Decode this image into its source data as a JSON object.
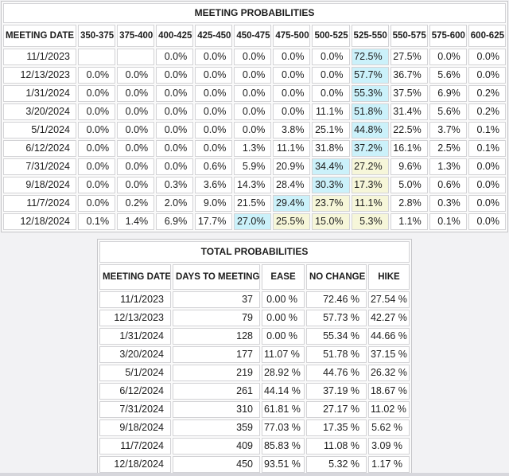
{
  "colors": {
    "page_bg": "#f2f2f4",
    "table_bg": "#fafafa",
    "outer_border": "#c5c5c8",
    "cell_border": "#d3d3d6",
    "text": "#1c1c1c",
    "highlight_max": "#cbf1fa",
    "highlight_current": "#f6f6d9",
    "bottom_edge": "#d7d7dc",
    "cell_bg": "#ffffff"
  },
  "meeting_table": {
    "title": "MEETING PROBABILITIES",
    "columns": [
      "MEETING DATE",
      "350-375",
      "375-400",
      "400-425",
      "425-450",
      "450-475",
      "475-500",
      "500-525",
      "525-550",
      "550-575",
      "575-600",
      "600-625"
    ],
    "rows": [
      {
        "cells": [
          "11/1/2023",
          "",
          "",
          "0.0%",
          "0.0%",
          "0.0%",
          "0.0%",
          "0.0%",
          {
            "t": "72.5%",
            "h": "max"
          },
          "27.5%",
          "0.0%",
          "0.0%"
        ]
      },
      {
        "cells": [
          "12/13/2023",
          "0.0%",
          "0.0%",
          "0.0%",
          "0.0%",
          "0.0%",
          "0.0%",
          "0.0%",
          {
            "t": "57.7%",
            "h": "max"
          },
          "36.7%",
          "5.6%",
          "0.0%"
        ]
      },
      {
        "cells": [
          "1/31/2024",
          "0.0%",
          "0.0%",
          "0.0%",
          "0.0%",
          "0.0%",
          "0.0%",
          "0.0%",
          {
            "t": "55.3%",
            "h": "max"
          },
          "37.5%",
          "6.9%",
          "0.2%"
        ]
      },
      {
        "cells": [
          "3/20/2024",
          "0.0%",
          "0.0%",
          "0.0%",
          "0.0%",
          "0.0%",
          "0.0%",
          "11.1%",
          {
            "t": "51.8%",
            "h": "max"
          },
          "31.4%",
          "5.6%",
          "0.2%"
        ]
      },
      {
        "cells": [
          "5/1/2024",
          "0.0%",
          "0.0%",
          "0.0%",
          "0.0%",
          "0.0%",
          "3.8%",
          "25.1%",
          {
            "t": "44.8%",
            "h": "max"
          },
          "22.5%",
          "3.7%",
          "0.1%"
        ]
      },
      {
        "cells": [
          "6/12/2024",
          "0.0%",
          "0.0%",
          "0.0%",
          "0.0%",
          "1.3%",
          "11.1%",
          "31.8%",
          {
            "t": "37.2%",
            "h": "max"
          },
          "16.1%",
          "2.5%",
          "0.1%"
        ]
      },
      {
        "cells": [
          "7/31/2024",
          "0.0%",
          "0.0%",
          "0.0%",
          "0.6%",
          "5.9%",
          "20.9%",
          {
            "t": "34.4%",
            "h": "max"
          },
          {
            "t": "27.2%",
            "h": "cur"
          },
          "9.6%",
          "1.3%",
          "0.0%"
        ]
      },
      {
        "cells": [
          "9/18/2024",
          "0.0%",
          "0.0%",
          "0.3%",
          "3.6%",
          "14.3%",
          "28.4%",
          {
            "t": "30.3%",
            "h": "max"
          },
          {
            "t": "17.3%",
            "h": "cur"
          },
          "5.0%",
          "0.6%",
          "0.0%"
        ]
      },
      {
        "cells": [
          "11/7/2024",
          "0.0%",
          "0.2%",
          "2.0%",
          "9.0%",
          "21.5%",
          {
            "t": "29.4%",
            "h": "max"
          },
          {
            "t": "23.7%",
            "h": "cur"
          },
          {
            "t": "11.1%",
            "h": "cur"
          },
          "2.8%",
          "0.3%",
          "0.0%"
        ]
      },
      {
        "cells": [
          "12/18/2024",
          "0.1%",
          "1.4%",
          "6.9%",
          "17.7%",
          {
            "t": "27.0%",
            "h": "max"
          },
          {
            "t": "25.5%",
            "h": "cur"
          },
          {
            "t": "15.0%",
            "h": "cur"
          },
          {
            "t": "5.3%",
            "h": "cur"
          },
          "1.1%",
          "0.1%",
          "0.0%"
        ]
      }
    ]
  },
  "total_table": {
    "title": "TOTAL PROBABILITIES",
    "columns": [
      "MEETING DATE",
      "DAYS TO MEETING",
      "EASE",
      "NO CHANGE",
      "HIKE"
    ],
    "rows": [
      [
        "11/1/2023",
        "37",
        "0.00 %",
        "72.46 %",
        "27.54 %"
      ],
      [
        "12/13/2023",
        "79",
        "0.00 %",
        "57.73 %",
        "42.27 %"
      ],
      [
        "1/31/2024",
        "128",
        "0.00 %",
        "55.34 %",
        "44.66 %"
      ],
      [
        "3/20/2024",
        "177",
        "11.07 %",
        "51.78 %",
        "37.15 %"
      ],
      [
        "5/1/2024",
        "219",
        "28.92 %",
        "44.76 %",
        "26.32 %"
      ],
      [
        "6/12/2024",
        "261",
        "44.14 %",
        "37.19 %",
        "18.67 %"
      ],
      [
        "7/31/2024",
        "310",
        "61.81 %",
        "27.17 %",
        "11.02 %"
      ],
      [
        "9/18/2024",
        "359",
        "77.03 %",
        "17.35 %",
        "5.62 %"
      ],
      [
        "11/7/2024",
        "409",
        "85.83 %",
        "11.08 %",
        "3.09 %"
      ],
      [
        "12/18/2024",
        "450",
        "93.51 %",
        "5.32 %",
        "1.17 %"
      ]
    ]
  }
}
